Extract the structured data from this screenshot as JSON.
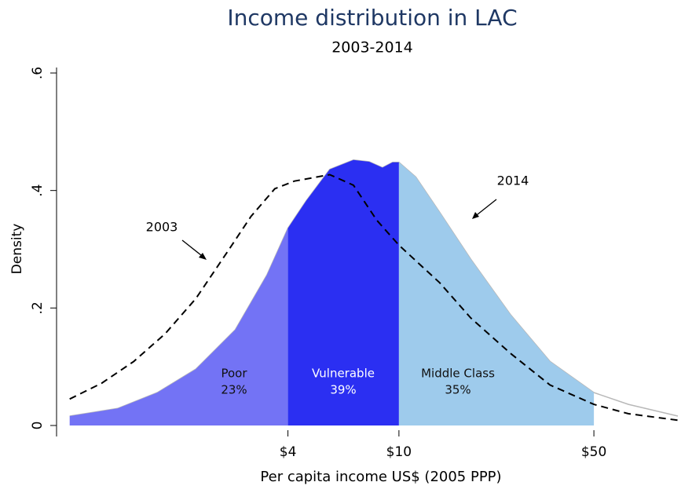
{
  "chart_data": {
    "type": "density",
    "title": "Income distribution in LAC",
    "subtitle": "2003-2014",
    "x_label": "Per capita income US$ (2005 PPP)",
    "y_label": "Density",
    "x_log": true,
    "xlim": [
      0.6,
      100
    ],
    "xticks": [
      {
        "value": 4,
        "label": "$4"
      },
      {
        "value": 10,
        "label": "$10"
      },
      {
        "value": 50,
        "label": "$50"
      }
    ],
    "ylim": [
      0,
      0.6
    ],
    "yticks": [
      0,
      {
        "value": 0.2,
        "label": ".2"
      },
      {
        "value": 0.4,
        "label": ".4"
      },
      {
        "value": 0.6,
        "label": ".6"
      }
    ],
    "series": [
      {
        "name": "2014",
        "color": "#b8b8b8",
        "dashed": false,
        "x": [
          0.66,
          0.98,
          1.36,
          1.87,
          2.59,
          3.36,
          4,
          4.66,
          5.65,
          6.87,
          7.82,
          8.73,
          9.49,
          10,
          11.5,
          14.0,
          18.1,
          25.1,
          34.8,
          50,
          66.5,
          100
        ],
        "values": [
          0.016,
          0.029,
          0.056,
          0.096,
          0.163,
          0.256,
          0.336,
          0.383,
          0.436,
          0.452,
          0.449,
          0.439,
          0.448,
          0.448,
          0.423,
          0.363,
          0.283,
          0.189,
          0.109,
          0.056,
          0.036,
          0.016
        ]
      },
      {
        "name": "2003",
        "color": "#000000",
        "dashed": true,
        "x": [
          0.66,
          0.86,
          1.12,
          1.45,
          1.87,
          2.43,
          2.95,
          3.59,
          4.22,
          5.65,
          6.87,
          8.34,
          10,
          14.0,
          18.1,
          25.1,
          34.8,
          50,
          66.5,
          100
        ],
        "values": [
          0.045,
          0.072,
          0.109,
          0.156,
          0.216,
          0.296,
          0.356,
          0.403,
          0.416,
          0.427,
          0.409,
          0.349,
          0.307,
          0.243,
          0.183,
          0.123,
          0.069,
          0.036,
          0.02,
          0.009
        ]
      }
    ],
    "regions": {
      "names": [
        "Poor",
        "Vulnerable",
        "Middle Class"
      ],
      "from": [
        0.66,
        4,
        10
      ],
      "to": [
        4,
        10,
        50
      ],
      "colors": [
        "#7373f5",
        "#2b2ff2",
        "#9ecbec"
      ],
      "values": [
        23,
        39,
        35
      ],
      "value_labels": [
        "23%",
        "39%",
        "35%"
      ]
    }
  }
}
